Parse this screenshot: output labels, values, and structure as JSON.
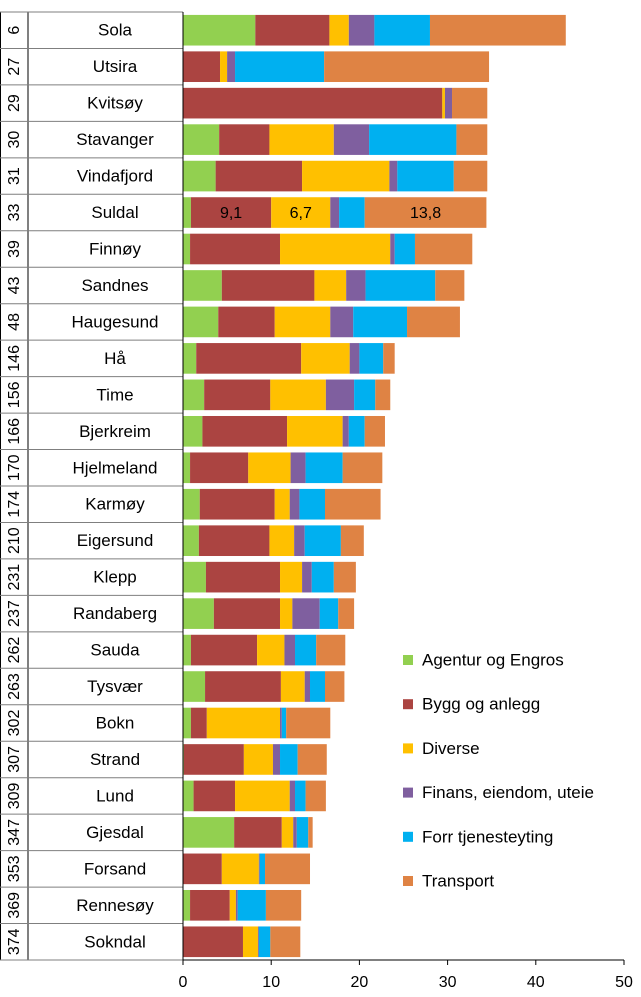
{
  "chart_data": {
    "type": "stacked-barh",
    "row_numbers": [
      "6",
      "27",
      "29",
      "30",
      "31",
      "33",
      "39",
      "43",
      "48",
      "146",
      "156",
      "166",
      "170",
      "174",
      "210",
      "231",
      "237",
      "262",
      "263",
      "302",
      "307",
      "309",
      "347",
      "353",
      "369",
      "374"
    ],
    "categories": [
      "Sola",
      "Utsira",
      "Kvitsøy",
      "Stavanger",
      "Vindafjord",
      "Suldal",
      "Finnøy",
      "Sandnes",
      "Haugesund",
      "Hå",
      "Time",
      "Bjerkreim",
      "Hjelmeland",
      "Karmøy",
      "Eigersund",
      "Klepp",
      "Randaberg",
      "Sauda",
      "Tysvær",
      "Bokn",
      "Strand",
      "Lund",
      "Gjesdal",
      "Forsand",
      "Rennesøy",
      "Sokndal"
    ],
    "series": [
      {
        "name": "Agentur og Engros",
        "color": "#92d050",
        "values": [
          8.2,
          0,
          0,
          4.1,
          3.7,
          0.9,
          0.8,
          4.4,
          4.0,
          1.5,
          2.4,
          2.2,
          0.8,
          1.9,
          1.8,
          2.6,
          3.5,
          0.9,
          2.5,
          0.9,
          0.1,
          1.2,
          5.8,
          0,
          0.8,
          0
        ]
      },
      {
        "name": "Bygg og anlegg",
        "color": "#ab4441",
        "values": [
          8.4,
          4.2,
          29.4,
          5.7,
          9.8,
          9.1,
          10.2,
          10.5,
          6.4,
          11.9,
          7.5,
          9.6,
          6.6,
          8.5,
          8.0,
          8.4,
          7.5,
          7.5,
          8.6,
          1.8,
          6.8,
          4.7,
          5.4,
          4.4,
          4.5,
          6.8
        ],
        "value_labels": [
          null,
          null,
          null,
          null,
          null,
          "9,1",
          null,
          null,
          null,
          null,
          null,
          null,
          null,
          null,
          null,
          null,
          null,
          null,
          null,
          null,
          null,
          null,
          null,
          null,
          null,
          null
        ]
      },
      {
        "name": "Diverse",
        "color": "#ffc000",
        "values": [
          2.2,
          0.8,
          0.3,
          7.3,
          9.9,
          6.7,
          12.5,
          3.6,
          6.3,
          5.5,
          6.3,
          6.3,
          4.8,
          1.7,
          2.8,
          2.5,
          1.4,
          3.1,
          2.7,
          8.3,
          3.3,
          6.2,
          1.3,
          4.2,
          0.7,
          1.7
        ],
        "value_labels": [
          null,
          null,
          null,
          null,
          null,
          "6,7",
          null,
          null,
          null,
          null,
          null,
          null,
          null,
          null,
          null,
          null,
          null,
          null,
          null,
          null,
          null,
          null,
          null,
          null,
          null,
          null
        ]
      },
      {
        "name": "Finans, eiendom, uteie",
        "color": "#7f5f9f",
        "values": [
          2.9,
          0.9,
          0.8,
          4.0,
          0.9,
          1.0,
          0.5,
          2.2,
          2.6,
          1.1,
          3.2,
          0.7,
          1.7,
          1.1,
          1.2,
          1.1,
          3.1,
          1.2,
          0.6,
          0.2,
          0.8,
          0.6,
          0.4,
          0.1,
          0.2,
          0.1
        ]
      },
      {
        "name": "Forr tjenesteyting",
        "color": "#00b0f0",
        "values": [
          6.3,
          10.1,
          0,
          9.9,
          6.4,
          2.9,
          2.3,
          7.9,
          6.1,
          2.7,
          2.4,
          1.8,
          4.2,
          2.9,
          4.1,
          2.5,
          2.1,
          2.4,
          1.7,
          0.5,
          2.0,
          1.2,
          1.3,
          0.6,
          3.2,
          1.3
        ]
      },
      {
        "name": "Transport",
        "color": "#df8344",
        "values": [
          15.4,
          18.7,
          4.0,
          3.5,
          3.8,
          13.8,
          6.5,
          3.3,
          6.0,
          1.3,
          1.7,
          2.3,
          4.5,
          6.3,
          2.6,
          2.5,
          1.8,
          3.3,
          2.2,
          5.0,
          3.3,
          2.3,
          0.5,
          5.1,
          4.0,
          3.4
        ],
        "value_labels": [
          null,
          null,
          null,
          null,
          null,
          "13,8",
          null,
          null,
          null,
          null,
          null,
          null,
          null,
          null,
          null,
          null,
          null,
          null,
          null,
          null,
          null,
          null,
          null,
          null,
          null,
          null
        ]
      }
    ],
    "xlim": [
      0,
      50
    ],
    "xticks": [
      0,
      10,
      20,
      30,
      40,
      50
    ],
    "legend": "lower right"
  }
}
